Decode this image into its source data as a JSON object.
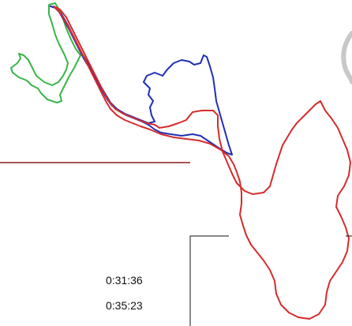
{
  "colors": {
    "red_route": "#d62b2b",
    "blue_route": "#1f2fb8",
    "green_route": "#39b549",
    "divider_line": "#8b1c1c",
    "frame_line": "#111111",
    "ghost_outline": "#c8c8c8"
  },
  "times": [
    {
      "value": "0:31:36"
    },
    {
      "value": "0:35:23"
    }
  ]
}
